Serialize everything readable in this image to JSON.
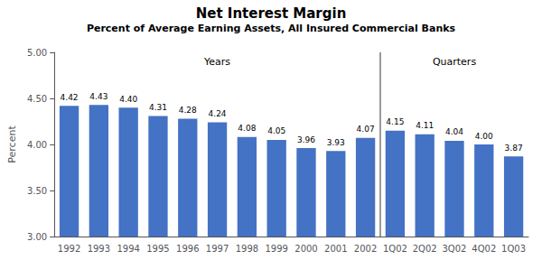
{
  "chart_data": {
    "type": "bar",
    "title": "Net Interest Margin",
    "subtitle": "Percent of Average Earning Assets, All Insured Commercial Banks",
    "ylabel": "Percent",
    "categories": [
      "1992",
      "1993",
      "1994",
      "1995",
      "1996",
      "1997",
      "1998",
      "1999",
      "2000",
      "2001",
      "2002",
      "1Q02",
      "2Q02",
      "3Q02",
      "4Q02",
      "1Q03"
    ],
    "values": [
      4.42,
      4.43,
      4.4,
      4.31,
      4.28,
      4.24,
      4.08,
      4.05,
      3.96,
      3.93,
      4.07,
      4.15,
      4.11,
      4.04,
      4.0,
      3.87
    ],
    "value_labels": [
      "4.42",
      "4.43",
      "4.40",
      "4.31",
      "4.28",
      "4.24",
      "4.08",
      "4.05",
      "3.96",
      "3.93",
      "4.07",
      "4.15",
      "4.11",
      "4.04",
      "4.00",
      "3.87"
    ],
    "data_labels": true,
    "color": "#4472C4",
    "ylim": [
      3.0,
      5.0
    ],
    "yticks": [
      {
        "value": 3.0,
        "label": "3.00"
      },
      {
        "value": 3.5,
        "label": "3.50"
      },
      {
        "value": 4.0,
        "label": "4.00"
      },
      {
        "value": 4.5,
        "label": "4.50"
      },
      {
        "value": 5.0,
        "label": "5.00"
      }
    ],
    "grid": false,
    "annotations": [
      {
        "text": "Years",
        "from": "1992",
        "to": "2002"
      },
      {
        "text": "Quarters",
        "from": "1Q02",
        "to": "1Q03"
      }
    ]
  }
}
